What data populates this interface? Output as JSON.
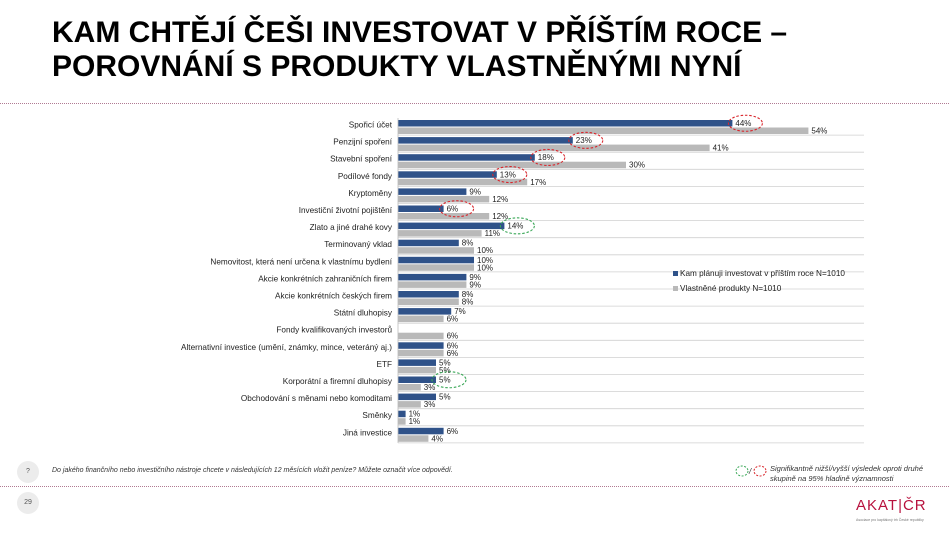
{
  "title": {
    "line1": "KAM CHTĚJÍ ČEŠI INVESTOVAT V PŘÍŠTÍM ROCE –",
    "line2": "POROVNÁNÍ S PRODUKTY VLASTNĚNÝMI NYNÍ"
  },
  "colors": {
    "plan": "#2f5289",
    "own": "#b9b9b9",
    "sig_red": "#d9262c",
    "sig_green": "#3aa757",
    "divider": "#b07a92",
    "brand": "#b8123e"
  },
  "chart_data": {
    "type": "bar",
    "orientation": "horizontal",
    "categories": [
      "Spořicí účet",
      "Penzijní spoření",
      "Stavební spoření",
      "Podílové fondy",
      "Kryptoměny",
      "Investiční životní pojištění",
      "Zlato a jiné drahé kovy",
      "Terminovaný vklad",
      "Nemovitost, která není určena k vlastnímu bydlení",
      "Akcie konkrétních zahraničních firem",
      "Akcie konkrétních českých firem",
      "Státní dluhopisy",
      "Fondy kvalifikovaných investorů",
      "Alternativní investice (umění, známky, mince, veteráný aj.)",
      "ETF",
      "Korporátní a firemní dluhopisy",
      "Obchodování s měnami nebo komoditami",
      "Směnky",
      "Jiná investice"
    ],
    "series": [
      {
        "name": "Kam plánuji investovat v příštím roce N=1010",
        "values": [
          44,
          23,
          18,
          13,
          9,
          6,
          14,
          8,
          10,
          9,
          8,
          7,
          null,
          6,
          5,
          5,
          5,
          1,
          6
        ],
        "labels": [
          "44%",
          "23%",
          "18%",
          "13%",
          "9%",
          "6%",
          "14%",
          "8%",
          "10%",
          "9%",
          "8%",
          "7%",
          "",
          "6%",
          "5%",
          "5%",
          "5%",
          "1%",
          "6%"
        ]
      },
      {
        "name": "Vlastněné produkty N=1010",
        "values": [
          54,
          41,
          30,
          17,
          12,
          12,
          11,
          10,
          10,
          9,
          8,
          6,
          6,
          6,
          5,
          3,
          3,
          1,
          4
        ],
        "labels": [
          "54%",
          "41%",
          "30%",
          "17%",
          "12%",
          "12%",
          "11%",
          "10%",
          "10%",
          "9%",
          "8%",
          "6%",
          "6%",
          "6%",
          "5%",
          "3%",
          "3%",
          "1%",
          "4%"
        ]
      }
    ],
    "significance": [
      {
        "category_index": 0,
        "type": "lower"
      },
      {
        "category_index": 1,
        "type": "lower"
      },
      {
        "category_index": 2,
        "type": "lower"
      },
      {
        "category_index": 3,
        "type": "lower"
      },
      {
        "category_index": 5,
        "type": "lower"
      },
      {
        "category_index": 6,
        "type": "higher"
      },
      {
        "category_index": 15,
        "type": "higher"
      }
    ],
    "legend_position": "right-middle",
    "grid": "horizontal-separators"
  },
  "footer": {
    "question_badge": "?",
    "question": "Do jakého finančního nebo investičního nástroje chcete v následujících 12 měsících vložit peníze?  Můžete označit více odpovědí.",
    "page_number": "29",
    "sig_slash": "/",
    "sig_note": "Signifikantně nižší/vyšší výsledek oproti druhé skupině na 95% hladině významnosti"
  },
  "logo": {
    "brand": "AKAT|ČR",
    "subtitle": "Asociace pro kapitálový trh České republiky"
  }
}
